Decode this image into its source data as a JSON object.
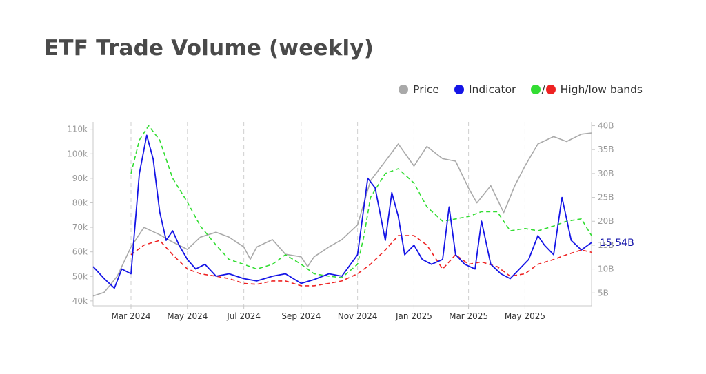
{
  "page": {
    "title": "ETF Trade Volume (weekly)"
  },
  "legend": [
    {
      "label": "Price",
      "colors": [
        "#a9a9a9"
      ]
    },
    {
      "label": "Indicator",
      "colors": [
        "#1515e6"
      ]
    },
    {
      "label": "High/low bands",
      "colors": [
        "#33dd33",
        "#ee2222"
      ],
      "separator": "/"
    }
  ],
  "chart_data": {
    "type": "line",
    "x_tick_labels": [
      "Mar 2024",
      "May 2024",
      "Jul 2024",
      "Sep 2024",
      "Nov 2024",
      "Jan 2025",
      "Mar 2025",
      "May 2025"
    ],
    "x_tick_dates": [
      "2024-03-01",
      "2024-05-01",
      "2024-07-01",
      "2024-09-01",
      "2024-11-01",
      "2025-01-01",
      "2025-03-01",
      "2025-05-01"
    ],
    "x_range": [
      "2024-01-20",
      "2025-07-12"
    ],
    "left_axis": {
      "ticks": [
        "40k",
        "50k",
        "60k",
        "70k",
        "80k",
        "90k",
        "100k",
        "110k"
      ],
      "values": [
        40000,
        50000,
        60000,
        70000,
        80000,
        90000,
        100000,
        110000
      ],
      "range": [
        38000,
        113000
      ]
    },
    "right_axis": {
      "ticks": [
        "5B",
        "10B",
        "15B",
        "20B",
        "25B",
        "30B",
        "35B",
        "40B"
      ],
      "values": [
        5,
        10,
        15,
        20,
        25,
        30,
        35,
        40
      ],
      "range": [
        2.3,
        40.8
      ]
    },
    "last_value_label": "15.54B",
    "last_value": 15.54,
    "grid": {
      "vertical_dashed": true,
      "horizontal": false
    },
    "legend_position": "top-right",
    "series": [
      {
        "name": "Price",
        "color": "#a9a9a9",
        "axis": "left",
        "style": "solid",
        "points": [
          [
            "2024-01-20",
            42000
          ],
          [
            "2024-02-01",
            43500
          ],
          [
            "2024-02-15",
            50000
          ],
          [
            "2024-03-01",
            62000
          ],
          [
            "2024-03-15",
            70000
          ],
          [
            "2024-04-01",
            67000
          ],
          [
            "2024-04-15",
            64000
          ],
          [
            "2024-05-01",
            61000
          ],
          [
            "2024-05-15",
            66000
          ],
          [
            "2024-06-01",
            68000
          ],
          [
            "2024-06-15",
            66000
          ],
          [
            "2024-07-01",
            62000
          ],
          [
            "2024-07-08",
            57000
          ],
          [
            "2024-07-15",
            62000
          ],
          [
            "2024-08-01",
            65000
          ],
          [
            "2024-08-15",
            59000
          ],
          [
            "2024-09-01",
            58000
          ],
          [
            "2024-09-08",
            54000
          ],
          [
            "2024-09-15",
            58000
          ],
          [
            "2024-10-01",
            62000
          ],
          [
            "2024-10-15",
            65000
          ],
          [
            "2024-11-01",
            71000
          ],
          [
            "2024-11-15",
            89000
          ],
          [
            "2024-12-01",
            97000
          ],
          [
            "2024-12-15",
            104000
          ],
          [
            "2025-01-01",
            95000
          ],
          [
            "2025-01-15",
            103000
          ],
          [
            "2025-02-01",
            98000
          ],
          [
            "2025-02-15",
            97000
          ],
          [
            "2025-03-01",
            86000
          ],
          [
            "2025-03-10",
            80000
          ],
          [
            "2025-03-25",
            87000
          ],
          [
            "2025-04-08",
            76000
          ],
          [
            "2025-04-20",
            87000
          ],
          [
            "2025-05-01",
            95000
          ],
          [
            "2025-05-15",
            104000
          ],
          [
            "2025-06-01",
            107000
          ],
          [
            "2025-06-15",
            105000
          ],
          [
            "2025-07-01",
            108000
          ],
          [
            "2025-07-12",
            108500
          ]
        ]
      },
      {
        "name": "Indicator",
        "color": "#1515e6",
        "axis": "right",
        "style": "solid",
        "points": [
          [
            "2024-01-20",
            10.5
          ],
          [
            "2024-02-01",
            8
          ],
          [
            "2024-02-12",
            6
          ],
          [
            "2024-02-20",
            10
          ],
          [
            "2024-03-01",
            9
          ],
          [
            "2024-03-10",
            30
          ],
          [
            "2024-03-18",
            38
          ],
          [
            "2024-03-25",
            33
          ],
          [
            "2024-04-01",
            22
          ],
          [
            "2024-04-08",
            16
          ],
          [
            "2024-04-15",
            18
          ],
          [
            "2024-04-22",
            15
          ],
          [
            "2024-05-01",
            12
          ],
          [
            "2024-05-10",
            10
          ],
          [
            "2024-05-20",
            11
          ],
          [
            "2024-06-01",
            8.5
          ],
          [
            "2024-06-15",
            9
          ],
          [
            "2024-07-01",
            8
          ],
          [
            "2024-07-15",
            7.5
          ],
          [
            "2024-08-01",
            8.5
          ],
          [
            "2024-08-15",
            9
          ],
          [
            "2024-09-01",
            7
          ],
          [
            "2024-09-15",
            7.8
          ],
          [
            "2024-10-01",
            9
          ],
          [
            "2024-10-15",
            8.5
          ],
          [
            "2024-11-01",
            13
          ],
          [
            "2024-11-12",
            29
          ],
          [
            "2024-11-20",
            27
          ],
          [
            "2024-12-01",
            16
          ],
          [
            "2024-12-08",
            26
          ],
          [
            "2024-12-15",
            21
          ],
          [
            "2024-12-22",
            13
          ],
          [
            "2025-01-01",
            15
          ],
          [
            "2025-01-10",
            12
          ],
          [
            "2025-01-20",
            11
          ],
          [
            "2025-02-01",
            12
          ],
          [
            "2025-02-08",
            23
          ],
          [
            "2025-02-15",
            13
          ],
          [
            "2025-02-25",
            11
          ],
          [
            "2025-03-08",
            10
          ],
          [
            "2025-03-15",
            20
          ],
          [
            "2025-03-25",
            11
          ],
          [
            "2025-04-05",
            9
          ],
          [
            "2025-04-15",
            8
          ],
          [
            "2025-04-25",
            10
          ],
          [
            "2025-05-05",
            12
          ],
          [
            "2025-05-15",
            17
          ],
          [
            "2025-05-22",
            15
          ],
          [
            "2025-06-01",
            13
          ],
          [
            "2025-06-10",
            25
          ],
          [
            "2025-06-20",
            16
          ],
          [
            "2025-07-01",
            14
          ],
          [
            "2025-07-12",
            15.54
          ]
        ]
      },
      {
        "name": "High band",
        "color": "#33dd33",
        "axis": "right",
        "style": "dashed",
        "points": [
          [
            "2024-03-01",
            30
          ],
          [
            "2024-03-10",
            37
          ],
          [
            "2024-03-20",
            40
          ],
          [
            "2024-04-01",
            37
          ],
          [
            "2024-04-15",
            29
          ],
          [
            "2024-05-01",
            24
          ],
          [
            "2024-05-15",
            19
          ],
          [
            "2024-06-01",
            15
          ],
          [
            "2024-06-15",
            12
          ],
          [
            "2024-07-01",
            11
          ],
          [
            "2024-07-15",
            10
          ],
          [
            "2024-08-01",
            11
          ],
          [
            "2024-08-15",
            13
          ],
          [
            "2024-09-01",
            11
          ],
          [
            "2024-09-15",
            9
          ],
          [
            "2024-10-01",
            8.5
          ],
          [
            "2024-10-15",
            8.2
          ],
          [
            "2024-11-01",
            11
          ],
          [
            "2024-11-08",
            17
          ],
          [
            "2024-11-15",
            25
          ],
          [
            "2024-12-01",
            30
          ],
          [
            "2024-12-15",
            31
          ],
          [
            "2025-01-01",
            28
          ],
          [
            "2025-01-15",
            23
          ],
          [
            "2025-02-01",
            20
          ],
          [
            "2025-02-15",
            20.5
          ],
          [
            "2025-03-01",
            21
          ],
          [
            "2025-03-15",
            22
          ],
          [
            "2025-04-01",
            22
          ],
          [
            "2025-04-15",
            18
          ],
          [
            "2025-05-01",
            18.5
          ],
          [
            "2025-05-15",
            18
          ],
          [
            "2025-06-01",
            19
          ],
          [
            "2025-06-15",
            20
          ],
          [
            "2025-07-01",
            20.5
          ],
          [
            "2025-07-12",
            17
          ]
        ]
      },
      {
        "name": "Low band",
        "color": "#ee2222",
        "axis": "right",
        "style": "dashed",
        "points": [
          [
            "2024-03-01",
            13
          ],
          [
            "2024-03-15",
            15
          ],
          [
            "2024-04-01",
            16
          ],
          [
            "2024-04-15",
            13
          ],
          [
            "2024-05-01",
            10
          ],
          [
            "2024-05-15",
            9
          ],
          [
            "2024-06-01",
            8.5
          ],
          [
            "2024-06-15",
            8
          ],
          [
            "2024-07-01",
            7
          ],
          [
            "2024-07-15",
            6.8
          ],
          [
            "2024-08-01",
            7.5
          ],
          [
            "2024-08-15",
            7.5
          ],
          [
            "2024-09-01",
            6.5
          ],
          [
            "2024-09-15",
            6.5
          ],
          [
            "2024-10-01",
            7
          ],
          [
            "2024-10-15",
            7.5
          ],
          [
            "2024-11-01",
            9
          ],
          [
            "2024-11-15",
            11
          ],
          [
            "2024-12-01",
            14
          ],
          [
            "2024-12-15",
            17
          ],
          [
            "2025-01-01",
            17
          ],
          [
            "2025-01-15",
            15
          ],
          [
            "2025-02-01",
            10
          ],
          [
            "2025-02-15",
            13
          ],
          [
            "2025-03-01",
            11
          ],
          [
            "2025-03-15",
            11.5
          ],
          [
            "2025-04-01",
            10.5
          ],
          [
            "2025-04-15",
            8.5
          ],
          [
            "2025-05-01",
            9
          ],
          [
            "2025-05-15",
            11
          ],
          [
            "2025-06-01",
            12
          ],
          [
            "2025-06-15",
            13
          ],
          [
            "2025-07-01",
            14
          ],
          [
            "2025-07-12",
            13.5
          ]
        ]
      }
    ]
  }
}
